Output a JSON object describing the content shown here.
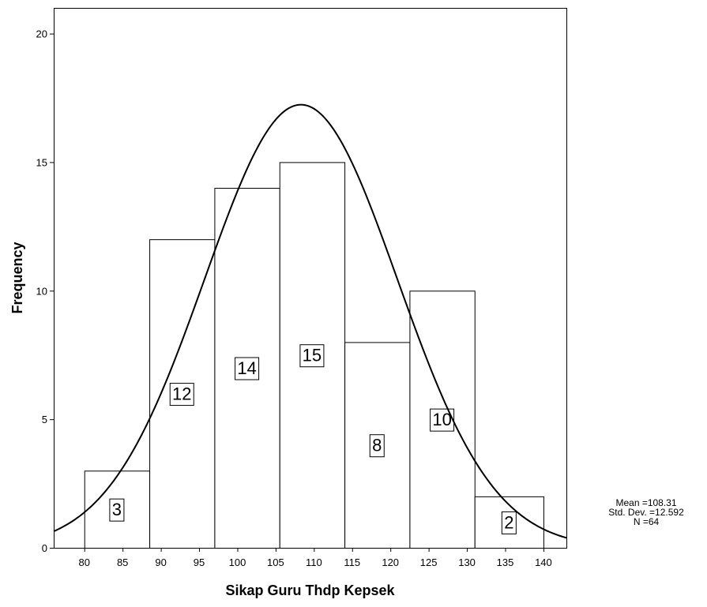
{
  "chart_data": {
    "type": "bar",
    "subtype": "histogram",
    "xlabel": "Sikap Guru Thdp Kepsek",
    "ylabel": "Frequency",
    "xlim": [
      76,
      143
    ],
    "ylim": [
      0,
      21
    ],
    "x_ticks": [
      80,
      85,
      90,
      95,
      100,
      105,
      110,
      115,
      120,
      125,
      130,
      135,
      140
    ],
    "y_ticks": [
      0,
      5,
      10,
      15,
      20
    ],
    "bins": [
      {
        "from": 80.0,
        "to": 88.5,
        "count": 3
      },
      {
        "from": 88.5,
        "to": 97.0,
        "count": 12
      },
      {
        "from": 97.0,
        "to": 105.5,
        "count": 14
      },
      {
        "from": 105.5,
        "to": 114.0,
        "count": 15
      },
      {
        "from": 114.0,
        "to": 122.5,
        "count": 8
      },
      {
        "from": 122.5,
        "to": 131.0,
        "count": 10
      },
      {
        "from": 131.0,
        "to": 140.0,
        "count": 2
      }
    ],
    "bar_labels": [
      "3",
      "12",
      "14",
      "15",
      "8",
      "10",
      "2"
    ],
    "normal_curve": {
      "mean": 108.31,
      "std": 12.592,
      "n": 64
    },
    "stats": {
      "mean": "Mean =108.31",
      "std": "Std. Dev. =12.592",
      "n": "N =64"
    },
    "grid": false
  }
}
